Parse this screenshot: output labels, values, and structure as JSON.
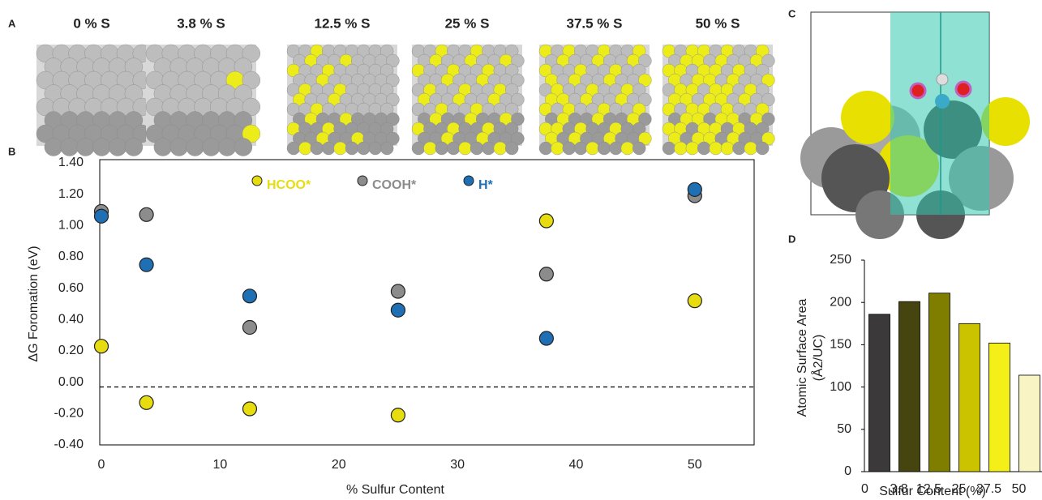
{
  "panel_labels": [
    "A",
    "B",
    "C",
    "D"
  ],
  "surface_labels": [
    "0 % S",
    "3.8 % S",
    "12.5 % S",
    "25 % S",
    "37.5 % S",
    "50 % S"
  ],
  "chart_data": [
    {
      "type": "scatter",
      "x_label": "% Sulfur Content",
      "y_label": "ΔG Foromation  (eV)",
      "x": [
        0,
        3.8,
        12.5,
        25,
        37.5,
        50
      ],
      "series": [
        {
          "name": "HCOO*",
          "color": "#e6dc10",
          "values": [
            0.23,
            -0.13,
            -0.17,
            -0.21,
            1.03,
            0.52
          ]
        },
        {
          "name": "COOH*",
          "color": "#8c8c8c",
          "values": [
            1.09,
            1.07,
            0.35,
            0.58,
            0.69,
            1.19
          ]
        },
        {
          "name": "H*",
          "color": "#1f6fb5",
          "values": [
            1.06,
            0.75,
            0.55,
            0.46,
            0.28,
            1.23
          ]
        }
      ],
      "xlim": [
        0,
        55
      ],
      "xticks": [
        0,
        10,
        20,
        30,
        40,
        50
      ],
      "ylim": [
        -0.4,
        1.4
      ],
      "yticks": [
        {
          "value": -0.4,
          "label": "-0.40"
        },
        {
          "value": -0.2,
          "label": "-0.20"
        },
        {
          "value": 0,
          "label": "0.00"
        },
        {
          "value": 0.2,
          "label": "0.20"
        },
        {
          "value": 0.4,
          "label": "0.40"
        },
        {
          "value": 0.6,
          "label": "0.60"
        },
        {
          "value": 0.8,
          "label": "0.80"
        },
        {
          "value": 1.0,
          "label": "1.00"
        },
        {
          "value": 1.2,
          "label": "1.20"
        },
        {
          "value": 1.4,
          "label": "1.40"
        }
      ],
      "reference_line": -0.03
    },
    {
      "type": "bar",
      "x_label": "Sulfur Content (%)",
      "y_label": [
        "Atomic Surface Area",
        "(Å2/UC)"
      ],
      "categories": [
        "0",
        "3.8",
        "12.5",
        "25",
        "37.5",
        "50"
      ],
      "values": [
        186,
        201,
        211,
        175,
        152,
        114
      ],
      "colors": [
        "#3b3939",
        "#46440f",
        "#807e00",
        "#cbc300",
        "#f4ef18",
        "#f8f4c4"
      ],
      "ylim": [
        0,
        250
      ],
      "yticks": [
        0,
        50,
        100,
        150,
        200,
        250
      ]
    }
  ]
}
